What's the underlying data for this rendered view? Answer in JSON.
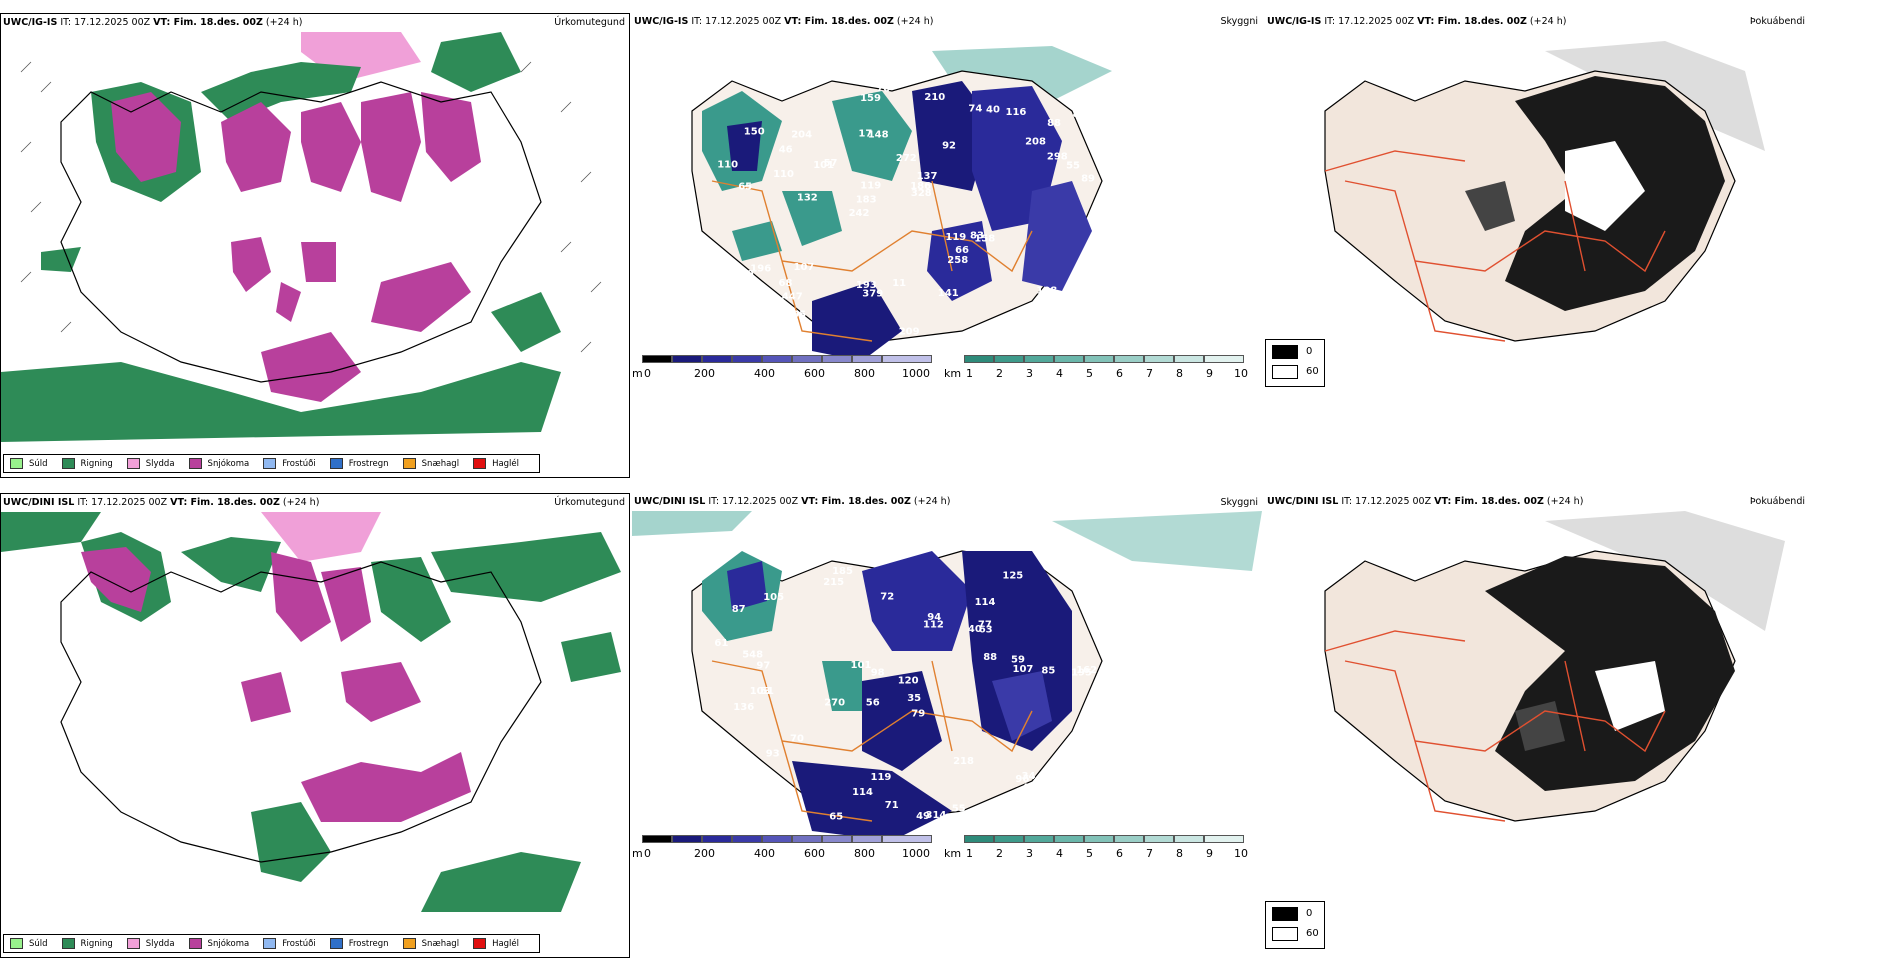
{
  "colors": {
    "sudd": "#98f08c",
    "rigning": "#2e8b57",
    "slydda": "#f0a0d8",
    "snjokoma": "#b8409c",
    "frostudi": "#90b8f0",
    "frostregn": "#3070c8",
    "snaehagl": "#f0a020",
    "haglel": "#e01010",
    "sky_dark": "#1a1a7a",
    "sky_teal": "#3a9a8c",
    "road": "#e08030",
    "fog_bg": "#f2e6dc"
  },
  "rows": [
    {
      "model": "UWC/IG-IS",
      "it": "IT: 17.12.2025 00Z",
      "vt": "VT: Fim. 18.des. 00Z",
      "lead": "(+24 h)",
      "precip_title": "Úrkomutegund",
      "sky_title": "Skyggni",
      "fog_title": "Þokuábendi",
      "sky_labels": [
        "51",
        "65",
        "88",
        "242",
        "92",
        "154",
        "17",
        "272",
        "196",
        "57",
        "366",
        "447",
        "148",
        "137",
        "158",
        "150",
        "159",
        "89",
        "119",
        "298",
        "183",
        "193",
        "119",
        "204",
        "74",
        "107",
        "94",
        "108",
        "83",
        "209",
        "101",
        "110",
        "258",
        "95",
        "55",
        "186",
        "73",
        "379",
        "328",
        "10",
        "208",
        "87",
        "66",
        "141",
        "68",
        "109",
        "88",
        "11",
        "116",
        "70",
        "132",
        "110",
        "46",
        "40",
        "36",
        "210"
      ]
    },
    {
      "model": "UWC/DINI ISL",
      "it": "IT: 17.12.2025 00Z",
      "vt": "VT: Fim. 18.des. 00Z",
      "lead": "(+24 h)",
      "precip_title": "Úrkomutegund",
      "sky_title": "Skyggni",
      "fog_title": "Þokuábendi",
      "sky_labels": [
        "185",
        "114",
        "195",
        "56",
        "79",
        "51",
        "87",
        "40",
        "136",
        "112",
        "120",
        "199",
        "215",
        "270",
        "49",
        "314",
        "119",
        "125",
        "88",
        "70",
        "97",
        "103",
        "162",
        "85",
        "51",
        "548",
        "98",
        "107",
        "34",
        "91",
        "96",
        "94",
        "93",
        "101",
        "218",
        "125",
        "59",
        "114",
        "73",
        "72",
        "106",
        "65",
        "55",
        "105",
        "71",
        "63",
        "44",
        "77",
        "61",
        "35"
      ]
    }
  ],
  "precip_legend": [
    "Súld",
    "Rigning",
    "Slydda",
    "Snjókoma",
    "Frostúði",
    "Frostregn",
    "Snæhagl",
    "Haglél"
  ],
  "height_bar": {
    "unit": "m",
    "ticks": [
      "0",
      "200",
      "400",
      "600",
      "800",
      "1000"
    ]
  },
  "vis_bar": {
    "unit": "km",
    "ticks": [
      "1",
      "2",
      "3",
      "4",
      "5",
      "6",
      "7",
      "8",
      "9",
      "10"
    ]
  },
  "fog_legend": {
    "black": "0",
    "white": "60"
  }
}
